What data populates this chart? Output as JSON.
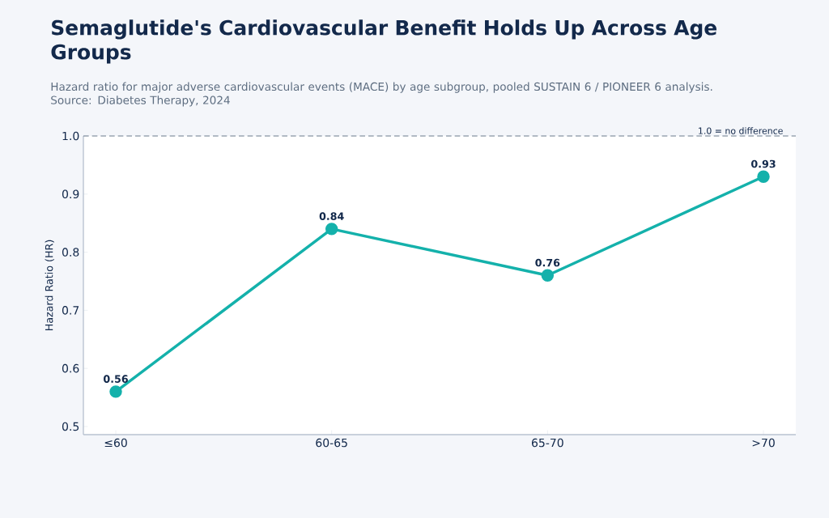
{
  "chart_data": {
    "type": "line",
    "title": "Semaglutide's Cardiovascular Benefit Holds Up Across Age Groups",
    "subtitle": "Hazard ratio for major adverse cardiovascular events (MACE) by age subgroup, pooled SUSTAIN 6 / PIONEER 6 analysis. Source: Diabetes Therapy, 2024",
    "ylabel": "Hazard Ratio (HR)",
    "categories": [
      "≤60",
      "60-65",
      "65-70",
      ">70"
    ],
    "values": [
      0.56,
      0.84,
      0.76,
      0.93
    ],
    "color": "#14b1ab",
    "ylim": [
      0.486,
      1.0
    ],
    "yticks": [
      0.5,
      0.6,
      0.7,
      0.8,
      0.9,
      {
        "value": 1.0,
        "label": "1.0"
      }
    ],
    "ref_lines": [
      {
        "axis": "y",
        "value": 1.0,
        "label": "1.0 = no difference",
        "color": "#6b7a8c",
        "line_style": "dashed"
      }
    ],
    "data_labels": true,
    "marker": "circle",
    "line_style": "solid"
  }
}
